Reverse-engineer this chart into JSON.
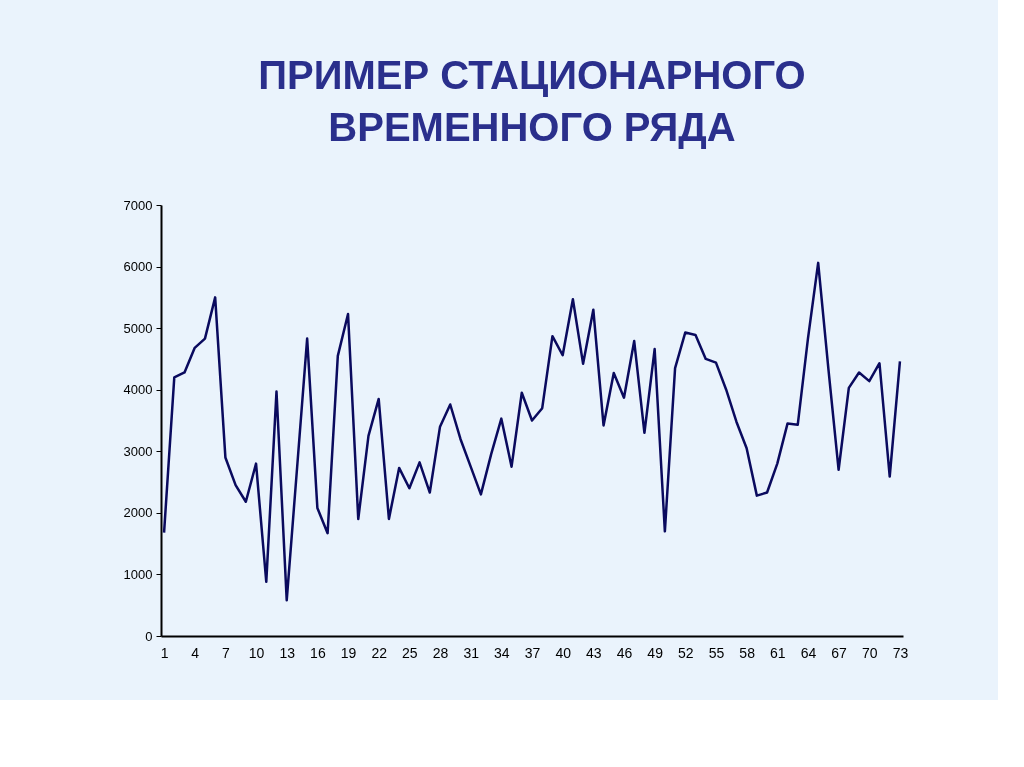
{
  "chart_data": {
    "type": "line",
    "title": [
      "ПРИМЕР СТАЦИОНАРНОГО",
      "ВРЕМЕННОГО РЯДА"
    ],
    "categories": [
      "1",
      null,
      null,
      "4",
      null,
      null,
      "7",
      null,
      null,
      "10",
      null,
      null,
      "13",
      null,
      null,
      "16",
      null,
      null,
      "19",
      null,
      null,
      "22",
      null,
      null,
      "25",
      null,
      null,
      "28",
      null,
      null,
      "31",
      null,
      null,
      "34",
      null,
      null,
      "37",
      null,
      null,
      "40",
      null,
      null,
      "43",
      null,
      null,
      "46",
      null,
      null,
      "49",
      null,
      null,
      "52",
      null,
      null,
      "55",
      null,
      null,
      "58",
      null,
      null,
      "61",
      null,
      null,
      "64",
      null,
      null,
      "67",
      null,
      null,
      "70",
      null,
      null,
      "73"
    ],
    "series": [
      {
        "color": "#0a0a5e",
        "values": [
          1680,
          4200,
          4280,
          4680,
          4830,
          5500,
          2900,
          2450,
          2180,
          2800,
          880,
          3970,
          580,
          2700,
          4830,
          2080,
          1670,
          4550,
          5230,
          1900,
          3250,
          3850,
          1900,
          2730,
          2400,
          2820,
          2330,
          3400,
          3760,
          3200,
          2750,
          2300,
          2950,
          3530,
          2750,
          3950,
          3500,
          3700,
          4870,
          4560,
          5470,
          4420,
          5300,
          3420,
          4270,
          3870,
          4790,
          3300,
          4660,
          1700,
          4350,
          4930,
          4890,
          4500,
          4440,
          4000,
          3480,
          3050,
          2280,
          2330,
          2800,
          3450,
          3430,
          4830,
          6060,
          4340,
          2700,
          4030,
          4280,
          4140,
          4430,
          2590,
          4460
        ]
      }
    ],
    "ylim": [
      0,
      7000
    ],
    "yticks": [
      0,
      1000,
      2000,
      3000,
      4000,
      5000,
      6000,
      7000
    ],
    "grid": false,
    "marker": "none",
    "line_style": "solid"
  }
}
